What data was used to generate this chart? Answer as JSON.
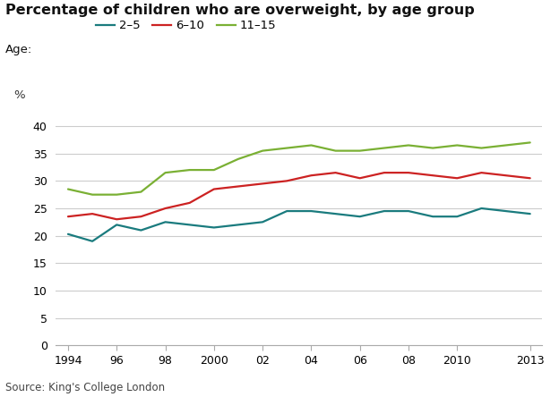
{
  "title": "Percentage of children who are overweight, by age group",
  "ylabel": "%",
  "source": "Source: King's College London",
  "legend_label": "Age:",
  "series": {
    "2-5": {
      "color": "#1a7b7e",
      "label": "2–5",
      "years": [
        1994,
        1995,
        1996,
        1997,
        1998,
        1999,
        2000,
        2001,
        2002,
        2003,
        2004,
        2005,
        2006,
        2007,
        2008,
        2009,
        2010,
        2011,
        2013
      ],
      "values": [
        20.3,
        19.0,
        22.0,
        21.0,
        22.5,
        22.0,
        21.5,
        22.0,
        22.5,
        24.5,
        24.5,
        24.0,
        23.5,
        24.5,
        24.5,
        23.5,
        23.5,
        25.0,
        24.0
      ]
    },
    "6-10": {
      "color": "#cc2222",
      "label": "6–10",
      "years": [
        1994,
        1995,
        1996,
        1997,
        1998,
        1999,
        2000,
        2001,
        2002,
        2003,
        2004,
        2005,
        2006,
        2007,
        2008,
        2009,
        2010,
        2011,
        2013
      ],
      "values": [
        23.5,
        24.0,
        23.0,
        23.5,
        25.0,
        26.0,
        28.5,
        29.0,
        29.5,
        30.0,
        31.0,
        31.5,
        30.5,
        31.5,
        31.5,
        31.0,
        30.5,
        31.5,
        30.5
      ]
    },
    "11-15": {
      "color": "#7ab034",
      "label": "11–15",
      "years": [
        1994,
        1995,
        1996,
        1997,
        1998,
        1999,
        2000,
        2001,
        2002,
        2003,
        2004,
        2005,
        2006,
        2007,
        2008,
        2009,
        2010,
        2011,
        2013
      ],
      "values": [
        28.5,
        27.5,
        27.5,
        28.0,
        31.5,
        32.0,
        32.0,
        34.0,
        35.5,
        36.0,
        36.5,
        35.5,
        35.5,
        36.0,
        36.5,
        36.0,
        36.5,
        36.0,
        37.0
      ]
    }
  },
  "xticks": [
    1994,
    1996,
    1998,
    2000,
    2002,
    2004,
    2006,
    2008,
    2010,
    2013
  ],
  "xticklabels": [
    "1994",
    "96",
    "98",
    "2000",
    "02",
    "04",
    "06",
    "08",
    "2010",
    "2013"
  ],
  "yticks": [
    0,
    5,
    10,
    15,
    20,
    25,
    30,
    35,
    40
  ],
  "ylim": [
    0,
    42
  ],
  "xlim": [
    1993.5,
    2013.5
  ],
  "background_color": "#ffffff",
  "grid_color": "#cccccc",
  "title_fontsize": 11.5,
  "label_fontsize": 9.5,
  "tick_fontsize": 9,
  "source_fontsize": 8.5,
  "line_width": 1.6
}
